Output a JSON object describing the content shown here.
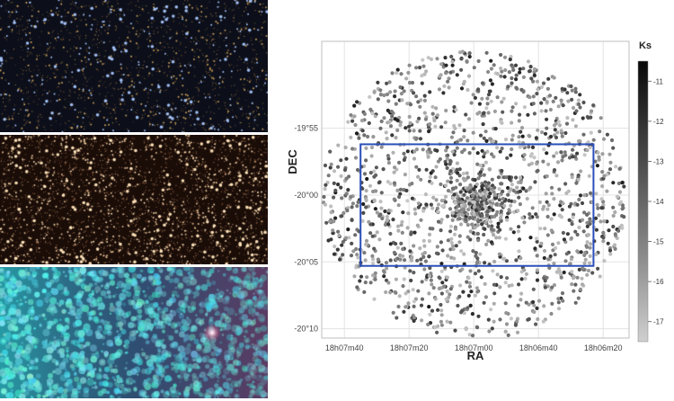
{
  "images": [
    {
      "name": "optical-rgb-image",
      "bg": "#0c0f1a"
    },
    {
      "name": "nir-rgb-image",
      "bg": "#1a0d08"
    },
    {
      "name": "mir-rgb-image",
      "bg": "#1b6a78"
    }
  ],
  "chart_data": {
    "type": "scatter",
    "xlabel": "RA",
    "ylabel": "DEC",
    "x_ticks": [
      "18h07m40",
      "18h07m20",
      "18h07m00",
      "18h06m40",
      "18h06m20"
    ],
    "x_tick_seconds": [
      40,
      20,
      0,
      -20,
      -40
    ],
    "y_ticks": [
      "-19°55",
      "-20°00",
      "-20°05",
      "-20°10"
    ],
    "y_tick_arcmin": [
      -5,
      0,
      5,
      10
    ],
    "xlim_seconds_east": [
      47,
      -48
    ],
    "ylim_arcmin_south": [
      -11.5,
      10.7
    ],
    "colorbar": {
      "title": "Ks",
      "ticks": [
        "-11",
        "-12",
        "-13",
        "-14",
        "-15",
        "-16",
        "-17"
      ],
      "range": [
        -10.5,
        -17.5
      ]
    },
    "box": {
      "ra_seconds": [
        35,
        -37
      ],
      "dec_arcmin_south": [
        -3.8,
        5.3
      ],
      "color": "#2a4fb8"
    },
    "grid": true,
    "point_color_dark": "#1a1a1a",
    "point_color_light": "#c8c8c8"
  }
}
